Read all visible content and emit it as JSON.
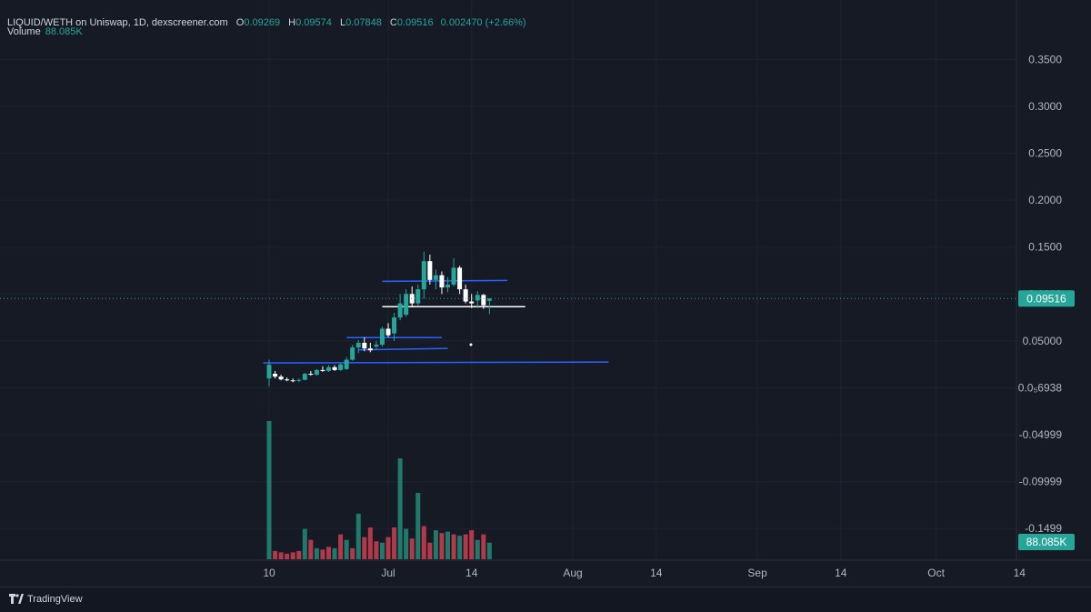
{
  "header": {
    "pair": "LIQUID/WETH on Uniswap, 1D, dexscreener.com",
    "o_label": "O",
    "o_value": "0.09269",
    "h_label": "H",
    "h_value": "0.09574",
    "l_label": "L",
    "l_value": "0.07848",
    "c_label": "C",
    "c_value": "0.09516",
    "change": "0.002470 (+2.66%)",
    "volume_label": "Volume",
    "volume_value": "88.085K"
  },
  "brand": {
    "name": "TradingView",
    "icon": "tradingview-logo-icon"
  },
  "colors": {
    "background": "#161a25",
    "up": "#26a69a",
    "down_volume": "#b2394a",
    "up_volume": "#1f7a6c",
    "trendline_blue": "#2962ff",
    "trendline_white": "#ffffff",
    "price_badge": "#26a69a"
  },
  "chart_data": {
    "type": "candlestick",
    "title": "LIQUID/WETH on Uniswap, 1D, dexscreener.com",
    "y_axis": {
      "tick_labels": [
        "0.3500",
        "0.3000",
        "0.2500",
        "0.2000",
        "0.1500",
        "0.1000",
        "0.05000",
        "0.0₅6938",
        "-0.04999",
        "-0.09999",
        "-0.1499"
      ],
      "tick_values": [
        0.35,
        0.3,
        0.25,
        0.2,
        0.15,
        0.1,
        0.05,
        0.0,
        -0.04999,
        -0.09999,
        -0.1499
      ],
      "range": [
        -0.17,
        0.39
      ]
    },
    "x_axis": {
      "tick_labels": [
        "10",
        "Jul",
        "14",
        "Aug",
        "14",
        "Sep",
        "14",
        "Oct",
        "14"
      ],
      "tick_days": [
        10,
        30,
        44,
        61,
        75,
        92,
        106,
        122,
        136
      ],
      "day0": "Jun 1"
    },
    "last_price": "0.09516",
    "last_volume": "88.085K",
    "candles": [
      {
        "d": 10,
        "o": 0.01,
        "h": 0.03,
        "l": 0.0015,
        "c": 0.0245
      },
      {
        "d": 11,
        "o": 0.015,
        "h": 0.018,
        "l": 0.01,
        "c": 0.012
      },
      {
        "d": 12,
        "o": 0.012,
        "h": 0.014,
        "l": 0.008,
        "c": 0.009
      },
      {
        "d": 13,
        "o": 0.009,
        "h": 0.011,
        "l": 0.007,
        "c": 0.008
      },
      {
        "d": 14,
        "o": 0.008,
        "h": 0.01,
        "l": 0.006,
        "c": 0.0075
      },
      {
        "d": 15,
        "o": 0.0075,
        "h": 0.01,
        "l": 0.006,
        "c": 0.0085
      },
      {
        "d": 16,
        "o": 0.0085,
        "h": 0.016,
        "l": 0.008,
        "c": 0.015
      },
      {
        "d": 17,
        "o": 0.015,
        "h": 0.018,
        "l": 0.013,
        "c": 0.014
      },
      {
        "d": 18,
        "o": 0.014,
        "h": 0.02,
        "l": 0.013,
        "c": 0.019
      },
      {
        "d": 19,
        "o": 0.019,
        "h": 0.023,
        "l": 0.017,
        "c": 0.018
      },
      {
        "d": 20,
        "o": 0.018,
        "h": 0.024,
        "l": 0.017,
        "c": 0.022
      },
      {
        "d": 21,
        "o": 0.022,
        "h": 0.024,
        "l": 0.018,
        "c": 0.019
      },
      {
        "d": 22,
        "o": 0.019,
        "h": 0.026,
        "l": 0.018,
        "c": 0.025
      },
      {
        "d": 23,
        "o": 0.02,
        "h": 0.033,
        "l": 0.019,
        "c": 0.03
      },
      {
        "d": 24,
        "o": 0.03,
        "h": 0.046,
        "l": 0.029,
        "c": 0.043
      },
      {
        "d": 25,
        "o": 0.043,
        "h": 0.051,
        "l": 0.037,
        "c": 0.048
      },
      {
        "d": 26,
        "o": 0.048,
        "h": 0.054,
        "l": 0.039,
        "c": 0.042
      },
      {
        "d": 27,
        "o": 0.042,
        "h": 0.048,
        "l": 0.038,
        "c": 0.04
      },
      {
        "d": 28,
        "o": 0.044,
        "h": 0.05,
        "l": 0.041,
        "c": 0.046
      },
      {
        "d": 29,
        "o": 0.046,
        "h": 0.065,
        "l": 0.044,
        "c": 0.063
      },
      {
        "d": 30,
        "o": 0.063,
        "h": 0.069,
        "l": 0.054,
        "c": 0.056
      },
      {
        "d": 31,
        "o": 0.058,
        "h": 0.08,
        "l": 0.05,
        "c": 0.075
      },
      {
        "d": 32,
        "o": 0.075,
        "h": 0.1,
        "l": 0.072,
        "c": 0.09
      },
      {
        "d": 33,
        "o": 0.078,
        "h": 0.105,
        "l": 0.076,
        "c": 0.1
      },
      {
        "d": 34,
        "o": 0.1,
        "h": 0.108,
        "l": 0.087,
        "c": 0.09
      },
      {
        "d": 35,
        "o": 0.09,
        "h": 0.11,
        "l": 0.088,
        "c": 0.105
      },
      {
        "d": 36,
        "o": 0.105,
        "h": 0.145,
        "l": 0.095,
        "c": 0.135
      },
      {
        "d": 37,
        "o": 0.135,
        "h": 0.142,
        "l": 0.11,
        "c": 0.115
      },
      {
        "d": 38,
        "o": 0.115,
        "h": 0.126,
        "l": 0.105,
        "c": 0.12
      },
      {
        "d": 39,
        "o": 0.12,
        "h": 0.124,
        "l": 0.1,
        "c": 0.107
      },
      {
        "d": 40,
        "o": 0.107,
        "h": 0.118,
        "l": 0.102,
        "c": 0.11
      },
      {
        "d": 41,
        "o": 0.11,
        "h": 0.138,
        "l": 0.108,
        "c": 0.128
      },
      {
        "d": 42,
        "o": 0.128,
        "h": 0.13,
        "l": 0.1,
        "c": 0.105
      },
      {
        "d": 43,
        "o": 0.105,
        "h": 0.11,
        "l": 0.09,
        "c": 0.092
      },
      {
        "d": 44,
        "o": 0.092,
        "h": 0.1,
        "l": 0.085,
        "c": 0.09
      },
      {
        "d": 45,
        "o": 0.093,
        "h": 0.103,
        "l": 0.085,
        "c": 0.099
      },
      {
        "d": 46,
        "o": 0.099,
        "h": 0.1,
        "l": 0.084,
        "c": 0.088
      },
      {
        "d": 47,
        "o": 0.0927,
        "h": 0.0957,
        "l": 0.0785,
        "c": 0.0952
      }
    ],
    "volume": {
      "max_value": 1000,
      "bars": [
        {
          "d": 10,
          "v": 1000,
          "up": true
        },
        {
          "d": 11,
          "v": 60,
          "up": false
        },
        {
          "d": 12,
          "v": 50,
          "up": false
        },
        {
          "d": 13,
          "v": 40,
          "up": false
        },
        {
          "d": 14,
          "v": 50,
          "up": false
        },
        {
          "d": 15,
          "v": 60,
          "up": false
        },
        {
          "d": 16,
          "v": 220,
          "up": true
        },
        {
          "d": 17,
          "v": 140,
          "up": false
        },
        {
          "d": 18,
          "v": 80,
          "up": true
        },
        {
          "d": 19,
          "v": 70,
          "up": false
        },
        {
          "d": 20,
          "v": 90,
          "up": false
        },
        {
          "d": 21,
          "v": 80,
          "up": true
        },
        {
          "d": 22,
          "v": 180,
          "up": false
        },
        {
          "d": 23,
          "v": 140,
          "up": true
        },
        {
          "d": 24,
          "v": 80,
          "up": false
        },
        {
          "d": 25,
          "v": 330,
          "up": true
        },
        {
          "d": 26,
          "v": 160,
          "up": false
        },
        {
          "d": 27,
          "v": 230,
          "up": false
        },
        {
          "d": 28,
          "v": 130,
          "up": false
        },
        {
          "d": 29,
          "v": 120,
          "up": true
        },
        {
          "d": 30,
          "v": 160,
          "up": false
        },
        {
          "d": 31,
          "v": 230,
          "up": false
        },
        {
          "d": 32,
          "v": 730,
          "up": true
        },
        {
          "d": 33,
          "v": 220,
          "up": true
        },
        {
          "d": 34,
          "v": 150,
          "up": false
        },
        {
          "d": 35,
          "v": 480,
          "up": true
        },
        {
          "d": 36,
          "v": 240,
          "up": false
        },
        {
          "d": 37,
          "v": 120,
          "up": false
        },
        {
          "d": 38,
          "v": 210,
          "up": true
        },
        {
          "d": 39,
          "v": 190,
          "up": false
        },
        {
          "d": 40,
          "v": 200,
          "up": true
        },
        {
          "d": 41,
          "v": 180,
          "up": false
        },
        {
          "d": 42,
          "v": 170,
          "up": true
        },
        {
          "d": 43,
          "v": 180,
          "up": false
        },
        {
          "d": 44,
          "v": 210,
          "up": false
        },
        {
          "d": 45,
          "v": 140,
          "up": true
        },
        {
          "d": 46,
          "v": 180,
          "up": false
        },
        {
          "d": 47,
          "v": 120,
          "up": true
        }
      ]
    },
    "trendlines": [
      {
        "color": "blue",
        "x1": 29,
        "y1": 0.1135,
        "x2": 50,
        "y2": 0.1145
      },
      {
        "color": "white",
        "x1": 29,
        "y1": 0.0865,
        "x2": 53,
        "y2": 0.0865
      },
      {
        "color": "blue",
        "x1": 23,
        "y1": 0.0535,
        "x2": 39,
        "y2": 0.0535
      },
      {
        "color": "blue",
        "x1": 25,
        "y1": 0.0405,
        "x2": 40,
        "y2": 0.042
      },
      {
        "color": "blue",
        "x1": 9,
        "y1": 0.0265,
        "x2": 67,
        "y2": 0.0275
      }
    ]
  }
}
